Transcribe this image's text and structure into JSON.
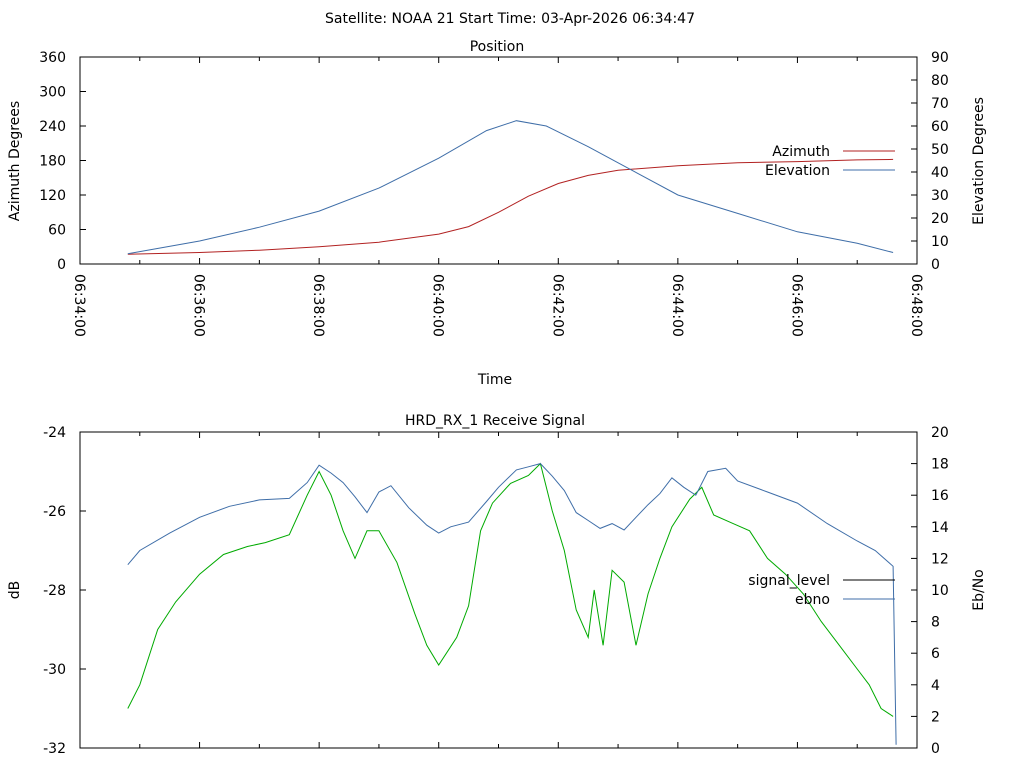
{
  "header": {
    "title": "Satellite: NOAA 21    Start Time: 03-Apr-2026 06:34:47"
  },
  "chart_data": [
    {
      "type": "line",
      "title": "Position",
      "xlabel": "Time",
      "ylabel": "Azimuth Degrees",
      "y2label": "Elevation Degrees",
      "x_ticks": [
        "06:34:00",
        "06:36:00",
        "06:38:00",
        "06:40:00",
        "06:42:00",
        "06:44:00",
        "06:46:00",
        "06:48:00"
      ],
      "x_range_minutes": [
        0,
        14
      ],
      "ylim": [
        0,
        360
      ],
      "y_ticks": [
        "0",
        "60",
        "120",
        "180",
        "240",
        "300",
        "360"
      ],
      "y2lim": [
        0,
        90
      ],
      "y2_ticks": [
        "0",
        "10",
        "20",
        "30",
        "40",
        "50",
        "60",
        "70",
        "80",
        "90"
      ],
      "legend": [
        "Azimuth",
        "Elevation"
      ],
      "series": [
        {
          "name": "Azimuth",
          "axis": "y",
          "color": "#b22222",
          "points": [
            [
              0.8,
              17
            ],
            [
              2,
              20
            ],
            [
              3,
              24
            ],
            [
              4,
              30
            ],
            [
              5,
              38
            ],
            [
              6,
              52
            ],
            [
              6.5,
              65
            ],
            [
              7,
              90
            ],
            [
              7.5,
              118
            ],
            [
              8,
              140
            ],
            [
              8.5,
              154
            ],
            [
              9,
              163
            ],
            [
              10,
              171
            ],
            [
              11,
              176
            ],
            [
              12,
              178
            ],
            [
              13,
              181
            ],
            [
              13.6,
              182
            ]
          ]
        },
        {
          "name": "Elevation",
          "axis": "y2",
          "color": "#3f6ea8",
          "points": [
            [
              0.8,
              4.5
            ],
            [
              2,
              10
            ],
            [
              3,
              16
            ],
            [
              4,
              23
            ],
            [
              5,
              33
            ],
            [
              6,
              46
            ],
            [
              6.8,
              58
            ],
            [
              7.3,
              62.3
            ],
            [
              7.8,
              60
            ],
            [
              8.5,
              51
            ],
            [
              9,
              44
            ],
            [
              10,
              30
            ],
            [
              11,
              22
            ],
            [
              12,
              14
            ],
            [
              13,
              9
            ],
            [
              13.6,
              5
            ]
          ]
        }
      ]
    },
    {
      "type": "line",
      "title": "HRD_RX_1 Receive Signal",
      "xlabel": "",
      "ylabel": "dB",
      "y2label": "Eb/No",
      "x_range_minutes": [
        0,
        14
      ],
      "ylim": [
        -32,
        -24
      ],
      "y_ticks": [
        "-32",
        "-30",
        "-28",
        "-26",
        "-24"
      ],
      "y2lim": [
        0,
        20
      ],
      "y2_ticks": [
        "0",
        "2",
        "4",
        "6",
        "8",
        "10",
        "12",
        "14",
        "16",
        "18",
        "20"
      ],
      "legend": [
        "signal_level",
        "ebno"
      ],
      "series": [
        {
          "name": "signal_level",
          "axis": "y",
          "color": "#00aa00",
          "points": [
            [
              0.8,
              -31.0
            ],
            [
              1.0,
              -30.4
            ],
            [
              1.3,
              -29.0
            ],
            [
              1.6,
              -28.3
            ],
            [
              2.0,
              -27.6
            ],
            [
              2.4,
              -27.1
            ],
            [
              2.8,
              -26.9
            ],
            [
              3.1,
              -26.8
            ],
            [
              3.5,
              -26.6
            ],
            [
              3.8,
              -25.6
            ],
            [
              4.0,
              -25.0
            ],
            [
              4.2,
              -25.6
            ],
            [
              4.4,
              -26.5
            ],
            [
              4.6,
              -27.2
            ],
            [
              4.8,
              -26.5
            ],
            [
              5.0,
              -26.5
            ],
            [
              5.3,
              -27.3
            ],
            [
              5.6,
              -28.6
            ],
            [
              5.8,
              -29.4
            ],
            [
              6.0,
              -29.9
            ],
            [
              6.3,
              -29.2
            ],
            [
              6.5,
              -28.4
            ],
            [
              6.7,
              -26.5
            ],
            [
              6.9,
              -25.8
            ],
            [
              7.2,
              -25.3
            ],
            [
              7.5,
              -25.1
            ],
            [
              7.7,
              -24.8
            ],
            [
              7.9,
              -26.0
            ],
            [
              8.1,
              -27.0
            ],
            [
              8.3,
              -28.5
            ],
            [
              8.5,
              -29.2
            ],
            [
              8.6,
              -28.0
            ],
            [
              8.75,
              -29.4
            ],
            [
              8.9,
              -27.5
            ],
            [
              9.1,
              -27.8
            ],
            [
              9.3,
              -29.4
            ],
            [
              9.5,
              -28.1
            ],
            [
              9.7,
              -27.2
            ],
            [
              9.9,
              -26.4
            ],
            [
              10.2,
              -25.7
            ],
            [
              10.4,
              -25.4
            ],
            [
              10.6,
              -26.1
            ],
            [
              10.9,
              -26.3
            ],
            [
              11.2,
              -26.5
            ],
            [
              11.5,
              -27.2
            ],
            [
              11.8,
              -27.6
            ],
            [
              12.1,
              -28.1
            ],
            [
              12.4,
              -28.8
            ],
            [
              12.7,
              -29.4
            ],
            [
              13.0,
              -30.0
            ],
            [
              13.2,
              -30.4
            ],
            [
              13.4,
              -31.0
            ],
            [
              13.6,
              -31.2
            ]
          ]
        },
        {
          "name": "ebno",
          "axis": "y2",
          "color": "#3f6ea8",
          "points": [
            [
              0.8,
              11.6
            ],
            [
              1.0,
              12.5
            ],
            [
              1.5,
              13.6
            ],
            [
              2.0,
              14.6
            ],
            [
              2.5,
              15.3
            ],
            [
              3.0,
              15.7
            ],
            [
              3.5,
              15.8
            ],
            [
              3.8,
              16.8
            ],
            [
              4.0,
              17.9
            ],
            [
              4.2,
              17.4
            ],
            [
              4.4,
              16.8
            ],
            [
              4.6,
              15.9
            ],
            [
              4.8,
              14.9
            ],
            [
              5.0,
              16.2
            ],
            [
              5.2,
              16.6
            ],
            [
              5.5,
              15.2
            ],
            [
              5.8,
              14.1
            ],
            [
              6.0,
              13.6
            ],
            [
              6.2,
              14.0
            ],
            [
              6.5,
              14.3
            ],
            [
              6.8,
              15.6
            ],
            [
              7.0,
              16.5
            ],
            [
              7.3,
              17.6
            ],
            [
              7.5,
              17.8
            ],
            [
              7.7,
              18.0
            ],
            [
              7.9,
              17.2
            ],
            [
              8.1,
              16.3
            ],
            [
              8.3,
              14.9
            ],
            [
              8.5,
              14.4
            ],
            [
              8.7,
              13.9
            ],
            [
              8.9,
              14.2
            ],
            [
              9.1,
              13.8
            ],
            [
              9.3,
              14.6
            ],
            [
              9.5,
              15.4
            ],
            [
              9.7,
              16.1
            ],
            [
              9.9,
              17.1
            ],
            [
              10.1,
              16.5
            ],
            [
              10.3,
              16.0
            ],
            [
              10.5,
              17.5
            ],
            [
              10.8,
              17.7
            ],
            [
              11.0,
              16.9
            ],
            [
              11.5,
              16.2
            ],
            [
              12.0,
              15.5
            ],
            [
              12.5,
              14.2
            ],
            [
              13.0,
              13.1
            ],
            [
              13.3,
              12.5
            ],
            [
              13.6,
              11.5
            ],
            [
              13.65,
              0.2
            ]
          ]
        }
      ]
    }
  ]
}
